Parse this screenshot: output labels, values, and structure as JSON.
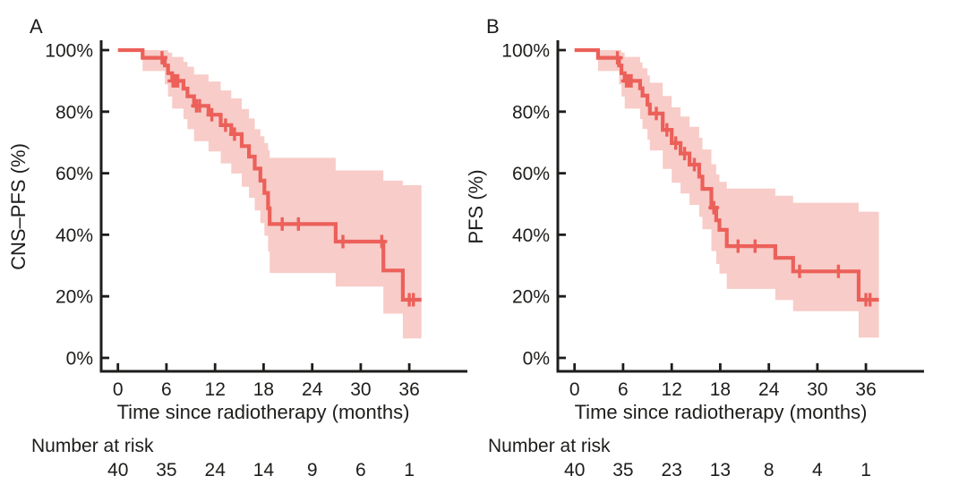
{
  "figure": {
    "background": "#ffffff",
    "colors": {
      "curve": "#ec605a",
      "band": "#f8ccc8",
      "axis": "#1d1d1b",
      "text": "#1d1d1b"
    }
  },
  "chart_data": [
    {
      "type": "line",
      "subtype": "kaplan-meier-step-with-ci",
      "panel_label": "A",
      "ylabel": "CNS–PFS (%)",
      "xlabel": "Time since radiotherapy (months)",
      "xlim": [
        0,
        43
      ],
      "ylim": [
        0,
        100
      ],
      "x_ticks": [
        0,
        6,
        12,
        18,
        24,
        30,
        36
      ],
      "y_tick_values": [
        100,
        80,
        60,
        40,
        20,
        0
      ],
      "y_tick_labels": [
        "100%",
        "80%",
        "60%",
        "40%",
        "20%",
        "0%"
      ],
      "grid": false,
      "legend": "none",
      "end_t": 37.5,
      "steps_t": [
        0,
        3.05,
        5.8,
        6.2,
        6.7,
        8.1,
        8.6,
        9.4,
        11.2,
        12.7,
        14.0,
        15.3,
        16.2,
        16.9,
        17.6,
        18.1,
        18.55,
        18.75,
        26.9,
        32.8,
        35.2
      ],
      "steps_s": [
        100,
        97.5,
        95,
        92.5,
        90,
        87.5,
        85,
        81.9,
        79,
        75.6,
        72.7,
        68.8,
        65.4,
        61.5,
        57.6,
        53.6,
        48.6,
        43.5,
        37.8,
        28.4,
        18.9
      ],
      "ci_upper": [
        100,
        100,
        100,
        99.2,
        97.8,
        96.2,
        94.6,
        92.1,
        89.8,
        86.9,
        84.3,
        80.9,
        77.8,
        74.3,
        72.0,
        69.8,
        67.5,
        65.0,
        60.9,
        57.6,
        56.1
      ],
      "ci_lower": [
        100,
        93.2,
        88.9,
        84.9,
        81.0,
        77.6,
        74.3,
        70.4,
        67.1,
        63.2,
        59.9,
        55.6,
        52.0,
        47.9,
        43.8,
        39.7,
        34.5,
        27.6,
        23.2,
        14.4,
        6.3
      ],
      "censors": [
        [
          5.45,
          97.5
        ],
        [
          6.8,
          90
        ],
        [
          7.1,
          90
        ],
        [
          7.4,
          90
        ],
        [
          9.7,
          81.9
        ],
        [
          10.1,
          81.9
        ],
        [
          11.6,
          79
        ],
        [
          13.3,
          75.6
        ],
        [
          14.4,
          72.7
        ],
        [
          20.3,
          43.5
        ],
        [
          22.3,
          43.5
        ],
        [
          27.8,
          37.8
        ],
        [
          32.6,
          37.8
        ],
        [
          36.0,
          18.9
        ],
        [
          36.5,
          18.9
        ]
      ],
      "number_at_risk_label": "Number at risk",
      "number_at_risk_times": [
        0,
        6,
        12,
        18,
        24,
        30,
        36
      ],
      "number_at_risk": [
        40,
        35,
        24,
        14,
        9,
        6,
        1
      ]
    },
    {
      "type": "line",
      "subtype": "kaplan-meier-step-with-ci",
      "panel_label": "B",
      "ylabel": "PFS (%)",
      "xlabel": "Time since radiotherapy (months)",
      "xlim": [
        0,
        43
      ],
      "ylim": [
        0,
        100
      ],
      "x_ticks": [
        0,
        6,
        12,
        18,
        24,
        30,
        36
      ],
      "y_tick_values": [
        100,
        80,
        60,
        40,
        20,
        0
      ],
      "y_tick_labels": [
        "100%",
        "80%",
        "60%",
        "40%",
        "20%",
        "0%"
      ],
      "grid": false,
      "legend": "none",
      "end_t": 37.6,
      "steps_t": [
        0,
        2.9,
        5.5,
        5.8,
        6.2,
        8.1,
        8.4,
        9.0,
        9.3,
        10.9,
        12.0,
        13.1,
        14.2,
        15.4,
        15.8,
        16.9,
        17.5,
        17.9,
        18.8,
        24.8,
        27.0,
        35.1
      ],
      "steps_s": [
        100,
        97.5,
        95,
        92.5,
        90,
        87.6,
        85.2,
        82.3,
        79.4,
        74.1,
        69.8,
        66.4,
        62.8,
        58.9,
        54.9,
        48.8,
        44.7,
        41.6,
        36.3,
        32.5,
        28.1,
        18.9
      ],
      "ci_upper": [
        100,
        100,
        100,
        99.2,
        97.8,
        96.0,
        94.1,
        91.8,
        89.4,
        85.1,
        81.4,
        78.4,
        75.1,
        71.5,
        67.7,
        62.9,
        59.6,
        57.2,
        55.0,
        52.7,
        50.4,
        47.5
      ],
      "ci_lower": [
        100,
        93.2,
        88.9,
        84.9,
        81.0,
        77.6,
        74.4,
        70.9,
        67.4,
        61.4,
        56.9,
        53.4,
        49.7,
        45.8,
        41.8,
        34.7,
        30.5,
        27.4,
        22.4,
        18.8,
        15.2,
        6.6
      ],
      "censors": [
        [
          5.3,
          97.5
        ],
        [
          6.4,
          90
        ],
        [
          6.7,
          90
        ],
        [
          7.0,
          90
        ],
        [
          10.1,
          79.4
        ],
        [
          11.4,
          74.1
        ],
        [
          12.5,
          69.8
        ],
        [
          13.6,
          66.4
        ],
        [
          14.8,
          62.8
        ],
        [
          17.2,
          48.8
        ],
        [
          20.2,
          36.3
        ],
        [
          22.3,
          36.3
        ],
        [
          27.8,
          28.1
        ],
        [
          32.6,
          28.1
        ],
        [
          36.0,
          18.9
        ],
        [
          36.5,
          18.9
        ]
      ],
      "number_at_risk_label": "Number at risk",
      "number_at_risk_times": [
        0,
        6,
        12,
        18,
        24,
        30,
        36
      ],
      "number_at_risk": [
        40,
        35,
        23,
        13,
        8,
        4,
        1
      ]
    }
  ]
}
